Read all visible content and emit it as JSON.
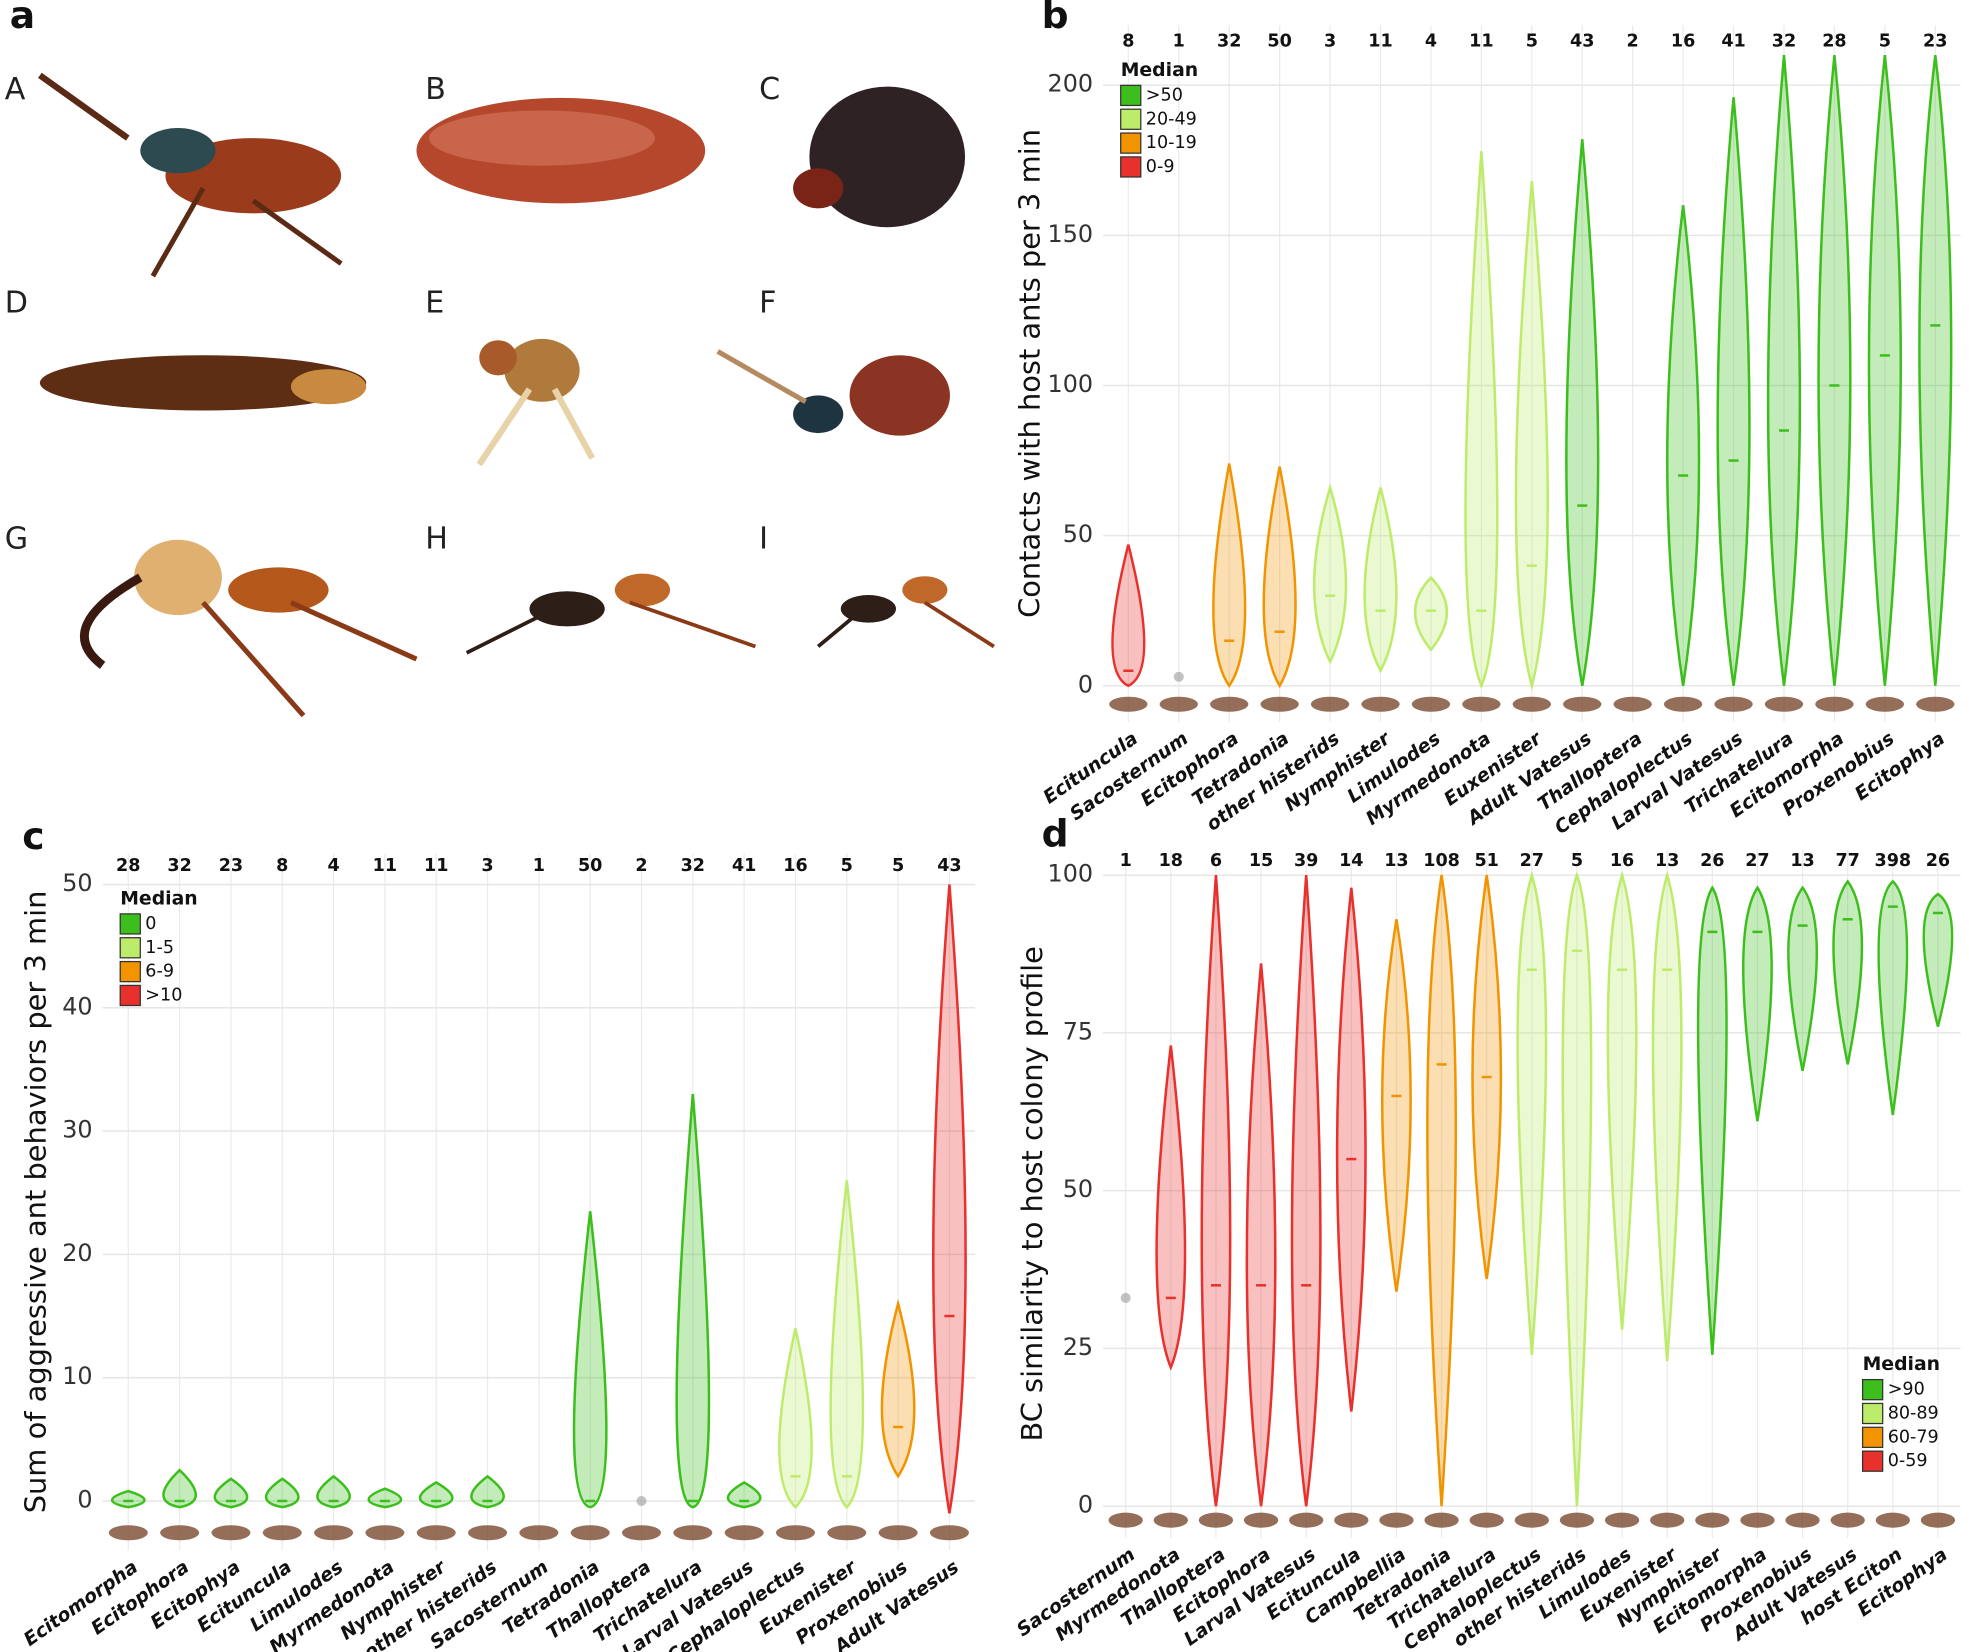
{
  "panel_a": {
    "label": "a",
    "photos": [
      "A",
      "B",
      "C",
      "D",
      "E",
      "F",
      "G",
      "H",
      "I"
    ]
  },
  "chart_data": [
    {
      "type": "violin",
      "panel": "b",
      "y_label": "Contacts with host ants per 3 min",
      "categories": [
        "Ecituncula",
        "Sacosternum",
        "Ecitophora",
        "Tetradonia",
        "other histerids",
        "Nymphister",
        "Limulodes",
        "Myrmedonota",
        "Euxenister",
        "Adult Vatesus",
        "Thalloptera",
        "Cephaloplectus",
        "Larval Vatesus",
        "Trichatelura",
        "Ecitomorpha",
        "Proxenobius",
        "Ecitophya"
      ],
      "n": [
        8,
        1,
        32,
        50,
        3,
        11,
        4,
        11,
        5,
        43,
        2,
        16,
        41,
        32,
        28,
        5,
        23
      ],
      "colors": [
        "#e8302c",
        null,
        "#f29400",
        "#f29400",
        "#bdeb6a",
        "#bdeb6a",
        "#bdeb6a",
        "#bdeb6a",
        "#bdeb6a",
        "#3cbf1c",
        null,
        "#3cbf1c",
        "#3cbf1c",
        "#3cbf1c",
        "#3cbf1c",
        "#3cbf1c",
        "#3cbf1c"
      ],
      "min": [
        0,
        null,
        0,
        0,
        8,
        5,
        12,
        0,
        0,
        0,
        null,
        0,
        0,
        0,
        0,
        0,
        0
      ],
      "median": [
        5,
        3,
        15,
        18,
        30,
        25,
        25,
        25,
        40,
        60,
        null,
        70,
        75,
        85,
        100,
        110,
        120
      ],
      "max": [
        47,
        null,
        74,
        73,
        66,
        66,
        36,
        178,
        168,
        182,
        null,
        160,
        196,
        210,
        210,
        210,
        210
      ],
      "ylim": [
        -12,
        220
      ],
      "yticks": [
        0,
        50,
        100,
        150,
        200
      ],
      "grid": true,
      "legend": {
        "title": "Median",
        "position": "top-left",
        "items": [
          {
            "label": ">50",
            "color": "#3cbf1c"
          },
          {
            "label": "20-49",
            "color": "#bdeb6a"
          },
          {
            "label": "10-19",
            "color": "#f29400"
          },
          {
            "label": "0-9",
            "color": "#e8302c"
          }
        ]
      }
    },
    {
      "type": "violin",
      "panel": "c",
      "y_label": "Sum of aggressive ant behaviors per 3 min",
      "categories": [
        "Ecitomorpha",
        "Ecitophora",
        "Ecitophya",
        "Ecituncula",
        "Limulodes",
        "Myrmedonota",
        "Nymphister",
        "other histerids",
        "Sacosternum",
        "Tetradonia",
        "Thalloptera",
        "Trichatelura",
        "Larval Vatesus",
        "Cephaloplectus",
        "Euxenister",
        "Proxenobius",
        "Adult Vatesus"
      ],
      "n": [
        28,
        32,
        23,
        8,
        4,
        11,
        11,
        3,
        1,
        50,
        2,
        32,
        41,
        16,
        5,
        5,
        43
      ],
      "colors": [
        "#3cbf1c",
        "#3cbf1c",
        "#3cbf1c",
        "#3cbf1c",
        "#3cbf1c",
        "#3cbf1c",
        "#3cbf1c",
        "#3cbf1c",
        null,
        "#3cbf1c",
        null,
        "#3cbf1c",
        "#3cbf1c",
        "#bdeb6a",
        "#bdeb6a",
        "#f29400",
        "#e8302c"
      ],
      "min": [
        -0.5,
        -0.5,
        -0.5,
        -0.5,
        -0.5,
        -0.5,
        -0.5,
        -0.5,
        null,
        -0.5,
        null,
        -0.5,
        -0.5,
        -0.5,
        -0.5,
        2,
        -1
      ],
      "median": [
        0,
        0,
        0,
        0,
        0,
        0,
        0,
        0,
        null,
        0,
        0,
        0,
        0,
        2,
        2,
        6,
        15
      ],
      "max": [
        0.8,
        2.5,
        1.8,
        1.8,
        2,
        1,
        1.5,
        2,
        null,
        23.5,
        null,
        33,
        1.5,
        14,
        26,
        16,
        50
      ],
      "ylim": [
        -4,
        52.5
      ],
      "yticks": [
        0,
        10,
        20,
        30,
        40,
        50
      ],
      "grid": true,
      "legend": {
        "title": "Median",
        "position": "top-left",
        "items": [
          {
            "label": "0",
            "color": "#3cbf1c"
          },
          {
            "label": "1-5",
            "color": "#bdeb6a"
          },
          {
            "label": "6-9",
            "color": "#f29400"
          },
          {
            "label": ">10",
            "color": "#e8302c"
          }
        ]
      }
    },
    {
      "type": "violin",
      "panel": "d",
      "y_label": "BC similarity to host colony profile",
      "categories": [
        "Sacosternum",
        "Myrmedonota",
        "Thalloptera",
        "Ecitophora",
        "Larval Vatesus",
        "Ecituncula",
        "Campbellia",
        "Tetradonia",
        "Trichatelura",
        "Cephaloplectus",
        "other histerids",
        "Limulodes",
        "Euxenister",
        "Nymphister",
        "Ecitomorpha",
        "Proxenobius",
        "Adult Vatesus",
        "host Eciton",
        "Ecitophya"
      ],
      "n": [
        1,
        18,
        6,
        15,
        39,
        14,
        13,
        108,
        51,
        27,
        5,
        16,
        13,
        26,
        27,
        13,
        77,
        398,
        26
      ],
      "colors": [
        null,
        "#e8302c",
        "#e8302c",
        "#e8302c",
        "#e8302c",
        "#e8302c",
        "#f29400",
        "#f29400",
        "#f29400",
        "#bdeb6a",
        "#bdeb6a",
        "#bdeb6a",
        "#bdeb6a",
        "#3cbf1c",
        "#3cbf1c",
        "#3cbf1c",
        "#3cbf1c",
        "#3cbf1c",
        "#3cbf1c"
      ],
      "min": [
        null,
        22,
        0,
        0,
        0,
        15,
        34,
        0,
        36,
        24,
        0,
        28,
        23,
        24,
        61,
        69,
        70,
        62,
        76
      ],
      "median": [
        33,
        33,
        35,
        35,
        35,
        55,
        65,
        70,
        68,
        85,
        88,
        85,
        85,
        91,
        91,
        92,
        93,
        95,
        94
      ],
      "max": [
        null,
        73,
        100,
        86,
        100,
        98,
        93,
        100,
        100,
        100,
        100,
        100,
        100,
        98,
        98,
        98,
        99,
        99,
        97
      ],
      "ylim": [
        -5,
        104
      ],
      "yticks": [
        0,
        25,
        50,
        75,
        100
      ],
      "grid": true,
      "legend": {
        "title": "Median",
        "position": "bottom-right",
        "items": [
          {
            "label": ">90",
            "color": "#3cbf1c"
          },
          {
            "label": "80-89",
            "color": "#bdeb6a"
          },
          {
            "label": "60-79",
            "color": "#f29400"
          },
          {
            "label": "0-59",
            "color": "#e8302c"
          }
        ]
      }
    }
  ]
}
